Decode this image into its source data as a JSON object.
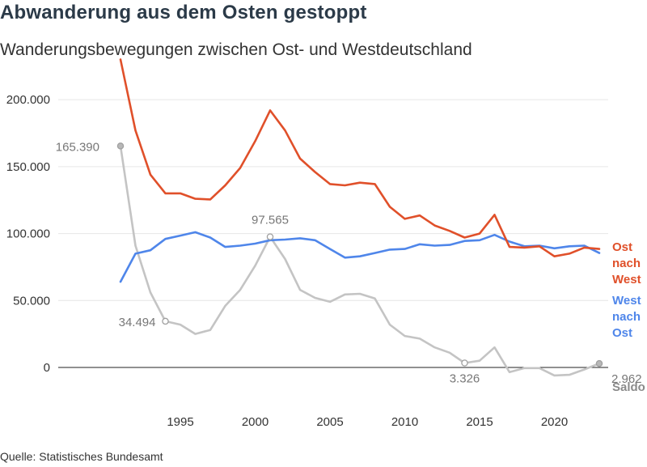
{
  "title": "Abwanderung aus dem Osten gestoppt",
  "subtitle": "Wanderungsbewegungen zwischen Ost- und Westdeutschland",
  "source": "Quelle: Statistisches Bundesamt",
  "colors": {
    "ost_nach_west": "#e0502a",
    "west_nach_ost": "#4f86ea",
    "saldo": "#c4c4c4",
    "grid": "#e6e6e6",
    "zero": "#222222"
  },
  "chart_data": {
    "type": "line",
    "grid": true,
    "x": [
      1991,
      1992,
      1993,
      1994,
      1995,
      1996,
      1997,
      1998,
      1999,
      2000,
      2001,
      2002,
      2003,
      2004,
      2005,
      2006,
      2007,
      2008,
      2009,
      2010,
      2011,
      2012,
      2013,
      2014,
      2015,
      2016,
      2017,
      2018,
      2019,
      2020,
      2021,
      2022,
      2023
    ],
    "xticks": [
      1995,
      2000,
      2005,
      2010,
      2015,
      2020
    ],
    "xlim": [
      1991,
      2023
    ],
    "ylim": [
      0,
      230000
    ],
    "yticks": [
      0,
      50000,
      100000,
      150000,
      200000
    ],
    "ytick_labels": [
      "0",
      "50.000",
      "100.000",
      "150.000",
      "200.000"
    ],
    "series": [
      {
        "key": "ost_nach_west",
        "name_lines": [
          "Ost",
          "nach",
          "West"
        ],
        "values": [
          230000,
          177000,
          144000,
          130000,
          130000,
          126000,
          125500,
          136000,
          149000,
          169000,
          192000,
          177000,
          156000,
          146000,
          137000,
          136000,
          138000,
          137000,
          120000,
          111000,
          113500,
          106000,
          102000,
          97000,
          100000,
          114000,
          90000,
          89500,
          90500,
          83000,
          85000,
          89500,
          88500
        ]
      },
      {
        "key": "west_nach_ost",
        "name_lines": [
          "West",
          "nach",
          "Ost"
        ],
        "values": [
          64000,
          85000,
          87500,
          96000,
          98500,
          101000,
          97000,
          90000,
          91000,
          92500,
          95000,
          95500,
          96500,
          95000,
          88500,
          82000,
          83000,
          85500,
          88000,
          88500,
          92000,
          91000,
          91500,
          94500,
          95000,
          99000,
          94000,
          90500,
          91000,
          89000,
          90500,
          91000,
          85500
        ]
      },
      {
        "key": "saldo",
        "name_lines": [
          "Saldo"
        ],
        "values": [
          165390,
          91000,
          56000,
          34494,
          32000,
          25000,
          28000,
          46000,
          58000,
          76000,
          97565,
          81000,
          58000,
          52000,
          49000,
          54500,
          55000,
          51500,
          32000,
          23500,
          21500,
          15000,
          11000,
          3326,
          5000,
          15000,
          -3500,
          -500,
          -500,
          -6000,
          -5500,
          -1500,
          2962
        ]
      }
    ],
    "annotations": [
      {
        "series": "saldo",
        "x": 1991,
        "label": "165.390"
      },
      {
        "series": "saldo",
        "x": 1994,
        "label": "34.494"
      },
      {
        "series": "saldo",
        "x": 2001,
        "label": "97.565"
      },
      {
        "series": "saldo",
        "x": 2014,
        "label": "3.326"
      },
      {
        "series": "saldo",
        "x": 2023,
        "label": "2.962"
      }
    ]
  }
}
